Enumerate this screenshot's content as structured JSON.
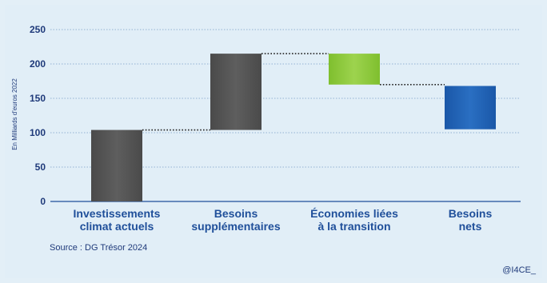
{
  "chart_data": {
    "type": "bar",
    "subtype": "waterfall",
    "ylabel": "En Milliards d'euros 2022",
    "ylim": [
      0,
      250
    ],
    "yticks": [
      0,
      50,
      100,
      150,
      200,
      250
    ],
    "grid": true,
    "categories": [
      "Investissements climat actuels",
      "Besoins supplémentaires",
      "Économies liées à la transition",
      "Besoins nets"
    ],
    "category_lines": [
      [
        "Investissements",
        "climat actuels"
      ],
      [
        "Besoins",
        "supplémentaires"
      ],
      [
        "Économies liées",
        "à la transition"
      ],
      [
        "Besoins",
        "nets"
      ]
    ],
    "bars": [
      {
        "base": 0,
        "top": 104
      },
      {
        "base": 104,
        "top": 215
      },
      {
        "base": 170,
        "top": 215
      },
      {
        "base": 105,
        "top": 168
      }
    ],
    "colors": [
      "#555555",
      "#555555",
      "#8cc63f",
      "#1f5fb0"
    ]
  },
  "source": "Source : DG Trésor 2024",
  "credit": "@I4CE_"
}
